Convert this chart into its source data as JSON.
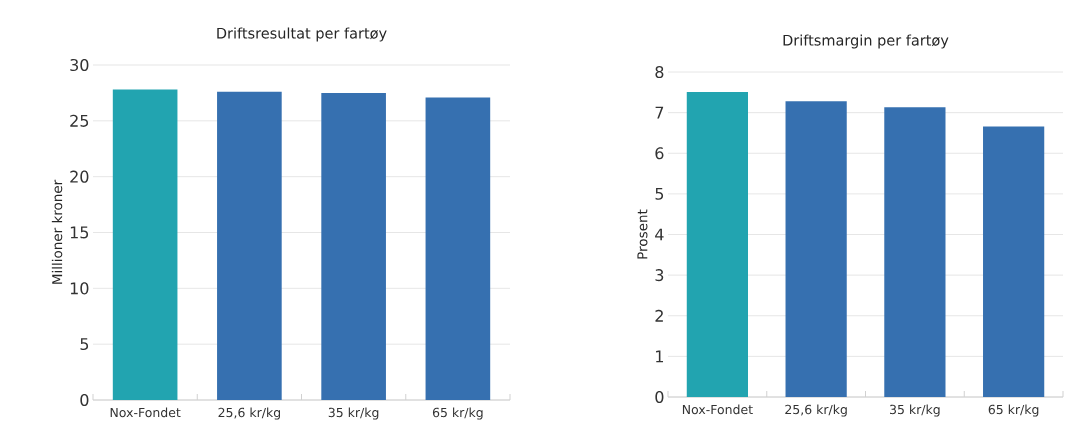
{
  "chart_data": [
    {
      "type": "bar",
      "title": "Driftsresultat per fartøy",
      "ylabel": "Millioner kroner",
      "categories": [
        "Nox-Fondet",
        "25,6 kr/kg",
        "35 kr/kg",
        "65 kr/kg"
      ],
      "values": [
        27.8,
        27.6,
        27.5,
        27.1
      ],
      "colors": [
        "#22a4b0",
        "#3670b0",
        "#3670b0",
        "#3670b0"
      ],
      "ylim": [
        0,
        30
      ],
      "yticks": [
        0,
        5,
        10,
        15,
        20,
        25,
        30
      ],
      "grid": "y"
    },
    {
      "type": "bar",
      "title": "Driftsmargin per fartøy",
      "ylabel": "Prosent",
      "categories": [
        "Nox-Fondet",
        "25,6 kr/kg",
        "35 kr/kg",
        "65 kr/kg"
      ],
      "values": [
        7.51,
        7.28,
        7.13,
        6.66
      ],
      "colors": [
        "#22a4b0",
        "#3670b0",
        "#3670b0",
        "#3670b0"
      ],
      "ylim": [
        0,
        8
      ],
      "yticks": [
        0,
        1,
        2,
        3,
        4,
        5,
        6,
        7,
        8
      ],
      "grid": "y"
    }
  ]
}
